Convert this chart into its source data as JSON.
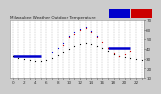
{
  "title": "Milwaukee Weather Outdoor Temperature vs THSW Index per Hour (24 Hours)",
  "bg_color": "#cccccc",
  "plot_bg": "#ffffff",
  "temp_dots": [
    [
      0,
      33
    ],
    [
      1,
      31
    ],
    [
      2,
      30
    ],
    [
      3,
      29
    ],
    [
      4,
      28
    ],
    [
      5,
      28
    ],
    [
      6,
      29
    ],
    [
      7,
      31
    ],
    [
      8,
      34
    ],
    [
      9,
      37
    ],
    [
      10,
      40
    ],
    [
      11,
      43
    ],
    [
      12,
      45
    ],
    [
      13,
      46
    ],
    [
      14,
      45
    ],
    [
      15,
      43
    ],
    [
      16,
      41
    ],
    [
      17,
      38
    ],
    [
      18,
      35
    ],
    [
      19,
      33
    ],
    [
      20,
      32
    ],
    [
      21,
      31
    ],
    [
      22,
      30
    ],
    [
      23,
      29
    ]
  ],
  "thsw_dots": [
    [
      9,
      44
    ],
    [
      10,
      52
    ],
    [
      11,
      56
    ],
    [
      12,
      60
    ],
    [
      13,
      62
    ],
    [
      14,
      58
    ],
    [
      15,
      52
    ],
    [
      16,
      47
    ],
    [
      17,
      41
    ],
    [
      18,
      36
    ],
    [
      19,
      33
    ],
    [
      20,
      35
    ],
    [
      21,
      38
    ]
  ],
  "blue_dots": [
    [
      7,
      37
    ],
    [
      8,
      41
    ],
    [
      9,
      46
    ],
    [
      10,
      53
    ],
    [
      11,
      58
    ],
    [
      12,
      61
    ],
    [
      13,
      63
    ],
    [
      14,
      59
    ],
    [
      15,
      53
    ]
  ],
  "blue_segments": [
    {
      "x": [
        0,
        5
      ],
      "y": [
        33,
        33
      ]
    },
    {
      "x": [
        17,
        21
      ],
      "y": [
        41,
        41
      ]
    }
  ],
  "legend_blue_color": "#0000cc",
  "legend_red_color": "#cc0000",
  "dot_color_black": "#000000",
  "dot_color_red": "#cc0000",
  "dot_color_blue": "#0000cc",
  "blue_line_color": "#0000cc",
  "ylim": [
    10,
    70
  ],
  "xlim": [
    -0.5,
    23.5
  ],
  "yticks": [
    10,
    20,
    30,
    40,
    50,
    60,
    70
  ],
  "xticks": [
    0,
    1,
    2,
    3,
    4,
    5,
    6,
    7,
    8,
    9,
    10,
    11,
    12,
    13,
    14,
    15,
    16,
    17,
    18,
    19,
    20,
    21,
    22,
    23
  ],
  "grid_color": "#999999",
  "spine_color": "#888888",
  "title_fontsize": 3.0,
  "tick_fontsize": 3.0
}
